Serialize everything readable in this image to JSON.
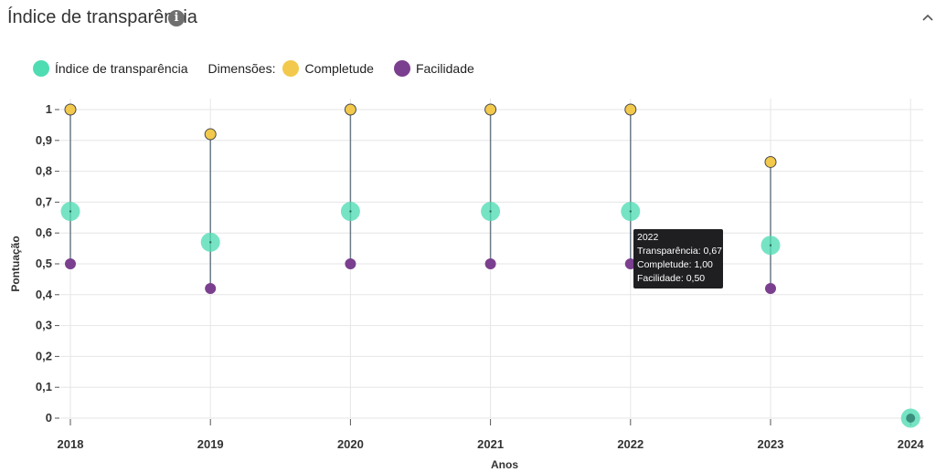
{
  "panel": {
    "title": "Índice de transparência",
    "info_icon": "info-icon",
    "collapse_icon": "chevron-up-icon"
  },
  "legend": {
    "index_label": "Índice de transparência",
    "dimensions_label": "Dimensões:",
    "completude_label": "Completude",
    "facilidade_label": "Facilidade"
  },
  "colors": {
    "index": "#4fdcb3",
    "completude": "#f2c94c",
    "facilidade": "#7b3f8f",
    "stem": "#6b7a86",
    "axis_text": "#333333",
    "grid": "#e6e6e6"
  },
  "chart_data": {
    "type": "scatter",
    "xlabel": "Anos",
    "ylabel": "Pontuação",
    "x": [
      "2018",
      "2019",
      "2020",
      "2021",
      "2022",
      "2023",
      "2024"
    ],
    "ylim": [
      0,
      1
    ],
    "y_ticks": [
      "0",
      "0,1",
      "0,2",
      "0,3",
      "0,4",
      "0,5",
      "0,6",
      "0,7",
      "0,8",
      "0,9",
      "1"
    ],
    "grid": true,
    "legend_position": "top-left",
    "series": [
      {
        "name": "Índice de transparência",
        "values": [
          0.67,
          0.57,
          0.67,
          0.67,
          0.67,
          0.56,
          0
        ]
      },
      {
        "name": "Completude",
        "values": [
          1,
          0.92,
          1,
          1,
          1,
          0.83,
          null
        ]
      },
      {
        "name": "Facilidade",
        "values": [
          0.5,
          0.42,
          0.5,
          0.5,
          0.5,
          0.42,
          null
        ]
      }
    ]
  },
  "tooltip": {
    "year": "2022",
    "transparencia": "Transparência: 0,67",
    "completude": "Completude: 1,00",
    "facilidade": "Facilidade: 0,50"
  }
}
